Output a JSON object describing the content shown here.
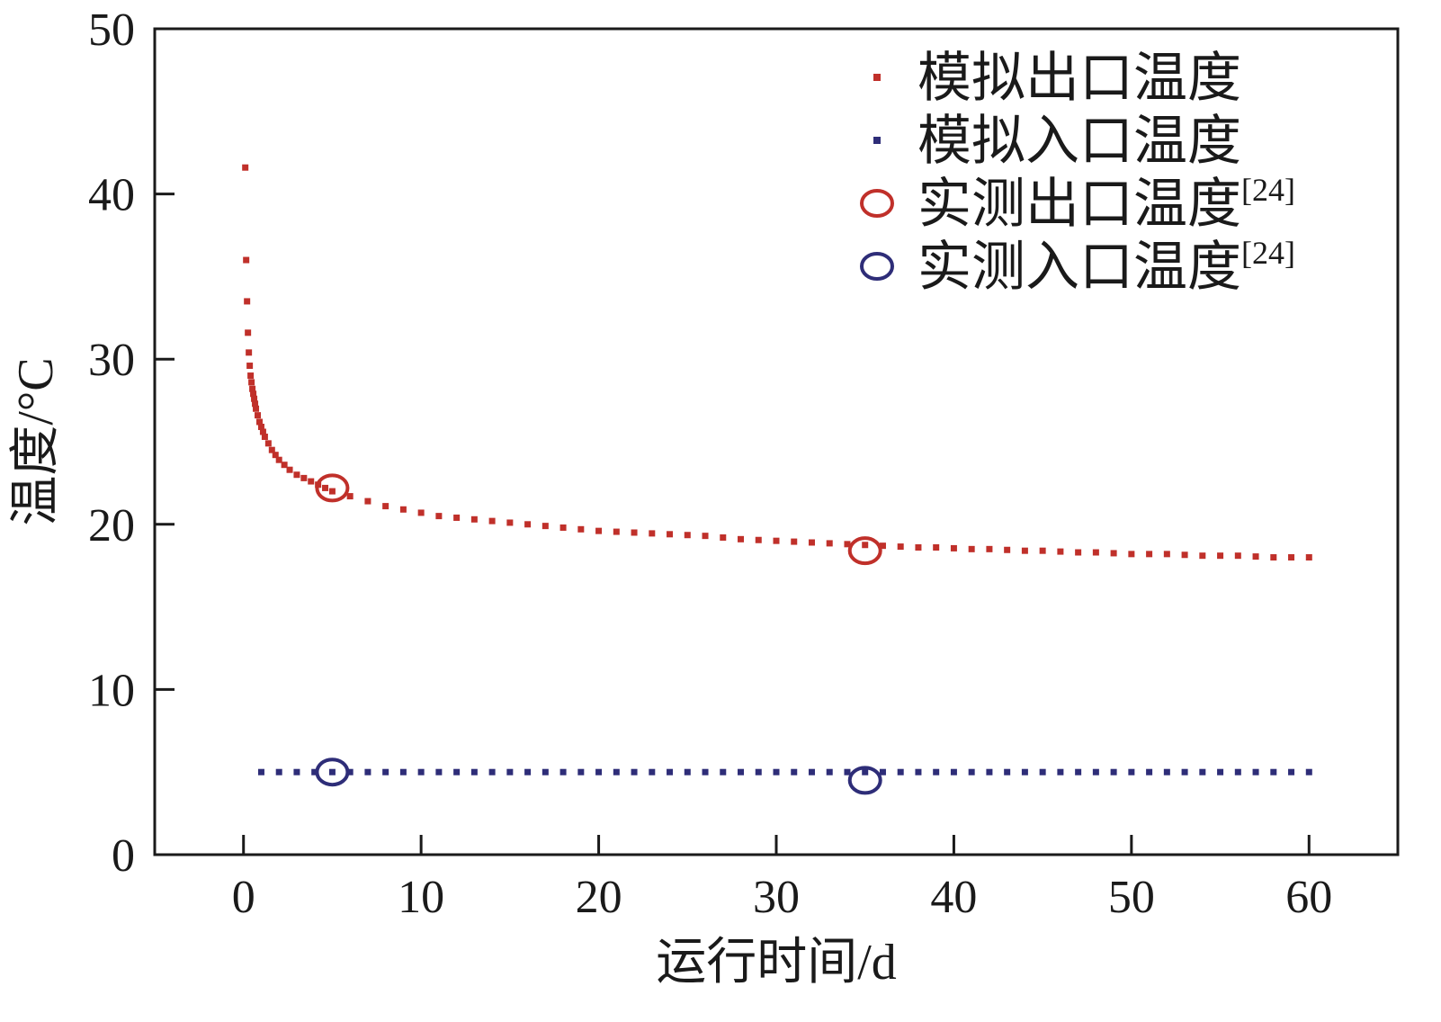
{
  "chart_data": {
    "type": "scatter",
    "title": "",
    "xlabel": "运行时间/d",
    "ylabel": "温度/°C",
    "xlim": [
      -5,
      65
    ],
    "ylim": [
      0,
      50
    ],
    "xticks": [
      0,
      10,
      20,
      30,
      40,
      50,
      60
    ],
    "yticks": [
      0,
      10,
      20,
      30,
      40,
      50
    ],
    "grid": false,
    "legend_position": "top-right",
    "series": [
      {
        "name": "模拟出口温度",
        "marker": "square",
        "color": "#c0302a",
        "x": [
          0.1,
          0.15,
          0.2,
          0.25,
          0.3,
          0.35,
          0.4,
          0.45,
          0.5,
          0.55,
          0.6,
          0.65,
          0.7,
          0.8,
          0.9,
          1.0,
          1.1,
          1.2,
          1.4,
          1.6,
          1.8,
          2.0,
          2.3,
          2.6,
          3.0,
          3.4,
          3.8,
          4.2,
          4.6,
          5.0,
          6,
          7,
          8,
          9,
          10,
          11,
          12,
          13,
          14,
          15,
          16,
          17,
          18,
          19,
          20,
          21,
          22,
          23,
          24,
          25,
          26,
          27,
          28,
          29,
          30,
          31,
          32,
          33,
          34,
          35,
          36,
          37,
          38,
          39,
          40,
          41,
          42,
          43,
          44,
          45,
          46,
          47,
          48,
          49,
          50,
          51,
          52,
          53,
          54,
          55,
          56,
          57,
          58,
          59,
          60
        ],
        "y": [
          41.6,
          36.0,
          33.5,
          31.6,
          30.4,
          29.6,
          29.0,
          28.6,
          28.2,
          27.9,
          27.6,
          27.3,
          27.0,
          26.6,
          26.2,
          25.9,
          25.6,
          25.3,
          24.9,
          24.5,
          24.2,
          23.9,
          23.6,
          23.3,
          23.0,
          22.8,
          22.6,
          22.4,
          22.2,
          22.0,
          21.7,
          21.4,
          21.1,
          20.9,
          20.7,
          20.5,
          20.4,
          20.3,
          20.2,
          20.1,
          20.0,
          19.9,
          19.8,
          19.7,
          19.6,
          19.55,
          19.5,
          19.45,
          19.4,
          19.35,
          19.3,
          19.2,
          19.1,
          19.05,
          19.0,
          18.95,
          18.9,
          18.85,
          18.8,
          18.75,
          18.7,
          18.65,
          18.6,
          18.6,
          18.55,
          18.5,
          18.5,
          18.45,
          18.4,
          18.4,
          18.35,
          18.3,
          18.3,
          18.25,
          18.2,
          18.2,
          18.2,
          18.15,
          18.1,
          18.1,
          18.1,
          18.05,
          18.0,
          18.0,
          18.0
        ]
      },
      {
        "name": "模拟入口温度",
        "marker": "square",
        "color": "#2e2d78",
        "x": [
          1,
          2,
          3,
          4,
          5,
          6,
          7,
          8,
          9,
          10,
          11,
          12,
          13,
          14,
          15,
          16,
          17,
          18,
          19,
          20,
          21,
          22,
          23,
          24,
          25,
          26,
          27,
          28,
          29,
          30,
          31,
          32,
          33,
          34,
          35,
          36,
          37,
          38,
          39,
          40,
          41,
          42,
          43,
          44,
          45,
          46,
          47,
          48,
          49,
          50,
          51,
          52,
          53,
          54,
          55,
          56,
          57,
          58,
          59,
          60
        ],
        "y": [
          5,
          5,
          5,
          5,
          5,
          5,
          5,
          5,
          5,
          5,
          5,
          5,
          5,
          5,
          5,
          5,
          5,
          5,
          5,
          5,
          5,
          5,
          5,
          5,
          5,
          5,
          5,
          5,
          5,
          5,
          5,
          5,
          5,
          5,
          5,
          5,
          5,
          5,
          5,
          5,
          5,
          5,
          5,
          5,
          5,
          5,
          5,
          5,
          5,
          5,
          5,
          5,
          5,
          5,
          5,
          5,
          5,
          5,
          5,
          5
        ]
      },
      {
        "name": "实测出口温度",
        "name_sup": "[24]",
        "marker": "circle",
        "color": "#c0302a",
        "x": [
          5,
          35
        ],
        "y": [
          22.2,
          18.4
        ]
      },
      {
        "name": "实测入口温度",
        "name_sup": "[24]",
        "marker": "circle",
        "color": "#2e2d78",
        "x": [
          5,
          35
        ],
        "y": [
          5.0,
          4.5
        ]
      }
    ]
  }
}
